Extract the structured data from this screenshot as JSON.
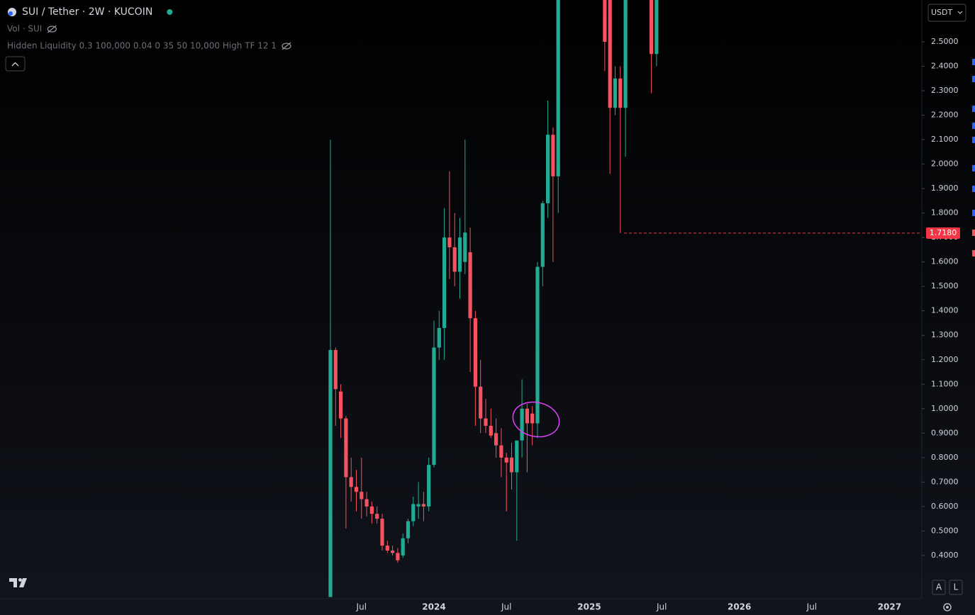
{
  "header": {
    "symbol": "SUI / Tether · 2W · KUCOIN",
    "indicators": [
      "Vol · SUI",
      "Hidden Liquidity 0.3 100,000 0.04 0 35 50 10,000 High TF 12 1"
    ],
    "currency": "USDT",
    "buttons": [
      "A",
      "L"
    ]
  },
  "chart_data": {
    "type": "candlestick",
    "up_color": "#22ab94",
    "down_color": "#f7525f",
    "categories": [
      null,
      null,
      null,
      null,
      null,
      null,
      "Jul",
      null,
      null,
      null,
      null,
      null,
      null,
      null,
      null,
      null,
      null,
      null,
      null,
      null,
      "2024",
      null,
      null,
      null,
      null,
      null,
      null,
      null,
      null,
      null,
      null,
      null,
      null,
      null,
      "Jul",
      null,
      null,
      null,
      null,
      null,
      null,
      null,
      null,
      null,
      null,
      null,
      null,
      null,
      null,
      null,
      "2025",
      null,
      null,
      null,
      null,
      null,
      null,
      null,
      null,
      null,
      null,
      null,
      null,
      null,
      "Jul",
      null,
      null,
      null,
      null,
      null,
      null,
      null,
      null,
      null,
      null,
      null,
      null,
      null,
      null,
      "2026",
      null,
      null,
      null,
      null,
      null,
      null,
      null,
      null,
      null,
      null,
      null,
      null,
      null,
      "Jul",
      null,
      null,
      null,
      null,
      null,
      null,
      null,
      null,
      null,
      null,
      null,
      null,
      null,
      null,
      "2027",
      null,
      null,
      null,
      null,
      null,
      null
    ],
    "ohlc": [
      [
        0.23,
        2.1,
        0.23,
        1.24
      ],
      [
        1.24,
        1.25,
        0.93,
        1.08
      ],
      [
        1.07,
        1.1,
        0.88,
        0.96
      ],
      [
        0.96,
        0.97,
        0.51,
        0.72
      ],
      [
        0.72,
        0.8,
        0.62,
        0.68
      ],
      [
        0.68,
        0.75,
        0.58,
        0.66
      ],
      [
        0.66,
        0.8,
        0.55,
        0.63
      ],
      [
        0.63,
        0.66,
        0.56,
        0.6
      ],
      [
        0.6,
        0.62,
        0.53,
        0.57
      ],
      [
        0.57,
        0.6,
        0.53,
        0.55
      ],
      [
        0.55,
        0.57,
        0.42,
        0.44
      ],
      [
        0.44,
        0.46,
        0.41,
        0.42
      ],
      [
        0.42,
        0.44,
        0.4,
        0.41
      ],
      [
        0.41,
        0.43,
        0.37,
        0.38
      ],
      [
        0.4,
        0.49,
        0.39,
        0.47
      ],
      [
        0.47,
        0.55,
        0.45,
        0.54
      ],
      [
        0.54,
        0.64,
        0.52,
        0.61
      ],
      [
        0.6,
        0.7,
        0.55,
        0.61
      ],
      [
        0.61,
        0.66,
        0.54,
        0.6
      ],
      [
        0.6,
        0.8,
        0.58,
        0.77
      ],
      [
        0.77,
        1.36,
        0.76,
        1.25
      ],
      [
        1.25,
        1.4,
        1.2,
        1.33
      ],
      [
        1.33,
        1.82,
        1.2,
        1.7
      ],
      [
        1.7,
        1.97,
        1.53,
        1.66
      ],
      [
        1.66,
        1.8,
        1.5,
        1.56
      ],
      [
        1.56,
        1.78,
        1.45,
        1.7
      ],
      [
        1.6,
        2.1,
        1.55,
        1.72
      ],
      [
        1.64,
        1.74,
        1.15,
        1.37
      ],
      [
        1.37,
        1.4,
        0.93,
        1.09
      ],
      [
        1.09,
        1.2,
        0.9,
        0.96
      ],
      [
        0.96,
        1.04,
        0.9,
        0.93
      ],
      [
        0.93,
        1.0,
        0.88,
        0.89
      ],
      [
        0.9,
        0.96,
        0.8,
        0.85
      ],
      [
        0.85,
        0.92,
        0.72,
        0.8
      ],
      [
        0.8,
        0.82,
        0.58,
        0.78
      ],
      [
        0.8,
        0.86,
        0.67,
        0.74
      ],
      [
        0.74,
        0.86,
        0.46,
        0.87
      ],
      [
        0.87,
        1.12,
        0.8,
        1.0
      ],
      [
        1.0,
        1.02,
        0.74,
        0.94
      ],
      [
        0.98,
        1.01,
        0.85,
        0.94
      ],
      [
        0.94,
        1.6,
        0.88,
        1.58
      ],
      [
        1.58,
        1.85,
        1.5,
        1.84
      ],
      [
        1.84,
        2.26,
        1.78,
        2.12
      ],
      [
        2.12,
        2.15,
        1.6,
        1.95
      ],
      [
        1.95,
        2.9,
        1.8,
        2.8
      ],
      null,
      null,
      null,
      null,
      null,
      null,
      null,
      null,
      [
        2.9,
        3.0,
        2.38,
        2.5
      ],
      [
        2.8,
        2.9,
        1.96,
        2.23
      ],
      [
        2.23,
        2.4,
        2.2,
        2.35
      ],
      [
        2.35,
        2.4,
        1.718,
        2.23
      ],
      [
        2.23,
        2.95,
        2.03,
        2.85
      ],
      null,
      null,
      null,
      null,
      [
        2.8,
        2.95,
        2.29,
        2.45
      ],
      [
        2.45,
        2.95,
        2.4,
        2.9
      ],
      null,
      null,
      null,
      null,
      null,
      null,
      null,
      null,
      null,
      null,
      null,
      null,
      null,
      null,
      null,
      null,
      null,
      null,
      null,
      null,
      null,
      null,
      null,
      null,
      null,
      null,
      null,
      null,
      null,
      null,
      null,
      null,
      null,
      null,
      null,
      null,
      null,
      null,
      null,
      null,
      null,
      null,
      null,
      null,
      null,
      null,
      null,
      null,
      null,
      null,
      null,
      null,
      null,
      null,
      null,
      null,
      null,
      null,
      null,
      null,
      null
    ],
    "ylim": [
      0.223,
      2.671
    ],
    "yticks": [
      {
        "value": 0.4,
        "label": "0.4000"
      },
      {
        "value": 0.5,
        "label": "0.5000"
      },
      {
        "value": 0.6,
        "label": "0.6000"
      },
      {
        "value": 0.7,
        "label": "0.7000"
      },
      {
        "value": 0.8,
        "label": "0.8000"
      },
      {
        "value": 0.9,
        "label": "0.9000"
      },
      {
        "value": 1.0,
        "label": "1.0000"
      },
      {
        "value": 1.1,
        "label": "1.1000"
      },
      {
        "value": 1.2,
        "label": "1.2000"
      },
      {
        "value": 1.3,
        "label": "1.3000"
      },
      {
        "value": 1.4,
        "label": "1.4000"
      },
      {
        "value": 1.5,
        "label": "1.5000"
      },
      {
        "value": 1.6,
        "label": "1.6000"
      },
      {
        "value": 1.7,
        "label": "1.7000"
      },
      {
        "value": 1.8,
        "label": "1.8000"
      },
      {
        "value": 1.9,
        "label": "1.9000"
      },
      {
        "value": 2.0,
        "label": "2.0000"
      },
      {
        "value": 2.1,
        "label": "2.1000"
      },
      {
        "value": 2.2,
        "label": "2.2000"
      },
      {
        "value": 2.3,
        "label": "2.3000"
      },
      {
        "value": 2.4,
        "label": "2.4000"
      },
      {
        "value": 2.5,
        "label": "2.5000"
      }
    ],
    "price_line": {
      "value": 1.718,
      "label": "1.7180",
      "color": "#f23645"
    }
  }
}
